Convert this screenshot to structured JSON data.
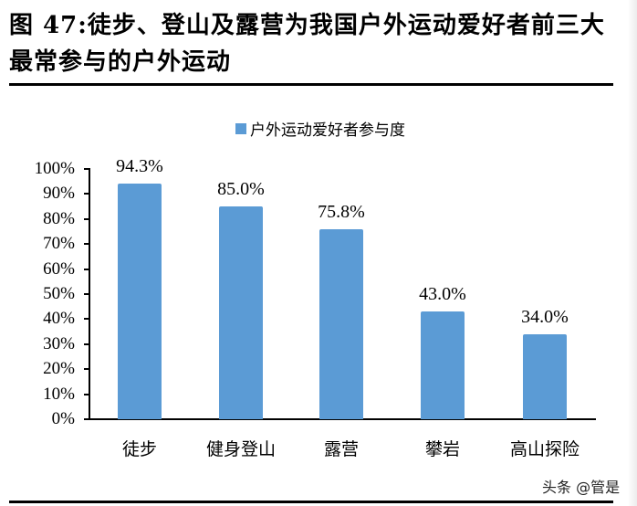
{
  "title": "图 47:徒步、登山及露营为我国户外运动爱好者前三大最常参与的户外运动",
  "watermark": "头条 @管是",
  "legend": {
    "label": "户外运动爱好者参与度",
    "color": "#5B9BD5"
  },
  "y_ticks": [
    "100%",
    "90%",
    "80%",
    "70%",
    "60%",
    "50%",
    "40%",
    "30%",
    "20%",
    "10%",
    "0%"
  ],
  "bars": [
    {
      "category": "徒步",
      "value": 94.3,
      "label": "94.3%"
    },
    {
      "category": "健身登山",
      "value": 85.0,
      "label": "85.0%"
    },
    {
      "category": "露营",
      "value": 75.8,
      "label": "75.8%"
    },
    {
      "category": "攀岩",
      "value": 43.0,
      "label": "43.0%"
    },
    {
      "category": "高山探险",
      "value": 34.0,
      "label": "34.0%"
    }
  ],
  "chart_data": {
    "type": "bar",
    "title": "图 47:徒步、登山及露营为我国户外运动爱好者前三大最常参与的户外运动",
    "categories": [
      "徒步",
      "健身登山",
      "露营",
      "攀岩",
      "高山探险"
    ],
    "series": [
      {
        "name": "户外运动爱好者参与度",
        "values": [
          94.3,
          85.0,
          75.8,
          43.0,
          34.0
        ],
        "color": "#5B9BD5"
      }
    ],
    "data_labels": [
      "94.3%",
      "85.0%",
      "75.8%",
      "43.0%",
      "34.0%"
    ],
    "xlabel": "",
    "ylabel": "",
    "ylim": [
      0,
      100
    ],
    "y_tick_format": "percent",
    "y_ticks": [
      0,
      10,
      20,
      30,
      40,
      50,
      60,
      70,
      80,
      90,
      100
    ],
    "grid": false,
    "legend_position": "top"
  }
}
